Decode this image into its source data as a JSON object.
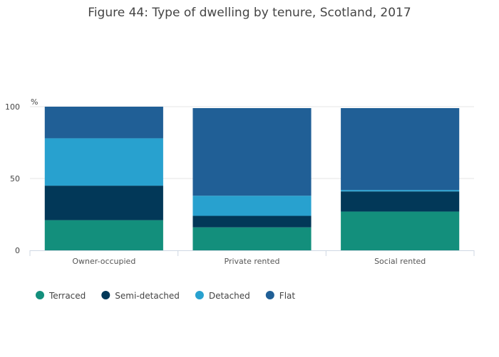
{
  "chart_data": {
    "type": "bar",
    "stacked": true,
    "title": "Figure 44: Type of dwelling by tenure, Scotland, 2017",
    "ylabel": "%",
    "xlabel": "",
    "ylim": [
      0,
      100
    ],
    "yticks": [
      0,
      50,
      100
    ],
    "categories": [
      "Owner-occupied",
      "Private rented",
      "Social rented"
    ],
    "series": [
      {
        "name": "Terraced",
        "color": "#138f7c",
        "values": [
          21,
          16,
          27
        ]
      },
      {
        "name": "Semi-detached",
        "color": "#023858",
        "values": [
          24,
          8,
          14
        ]
      },
      {
        "name": "Detached",
        "color": "#28a1cf",
        "values": [
          33,
          14,
          1
        ]
      },
      {
        "name": "Flat",
        "color": "#205f96",
        "values": [
          22,
          61,
          57
        ]
      }
    ],
    "legend_position": "bottom-left",
    "grid": true
  }
}
